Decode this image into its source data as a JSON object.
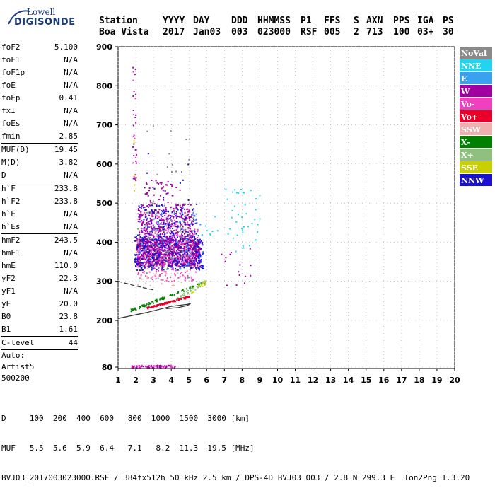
{
  "logo": {
    "line1": "Lowell",
    "line2": "DIGISONDE"
  },
  "header": {
    "labels": [
      "Station",
      "YYYY",
      "DAY",
      "DDD",
      "HHMMSS",
      "P1",
      "FFS",
      "S",
      "AXN",
      "PPS",
      "IGA",
      "PS"
    ],
    "values": [
      "Boa Vista",
      "2017",
      "Jan03",
      "003",
      "023000",
      "RSF",
      "005",
      "2",
      "713",
      "100",
      "03+",
      "30"
    ]
  },
  "params": [
    {
      "k": "foF2",
      "v": "5.100"
    },
    {
      "k": "foF1",
      "v": "N/A"
    },
    {
      "k": "foF1p",
      "v": "N/A"
    },
    {
      "k": "foE",
      "v": "N/A"
    },
    {
      "k": "foEp",
      "v": "0.41"
    },
    {
      "k": "fxI",
      "v": "N/A"
    },
    {
      "k": "foEs",
      "v": "N/A"
    },
    {
      "k": "fmin",
      "v": "2.85"
    },
    {
      "sep": true
    },
    {
      "k": "MUF(D)",
      "v": "19.45"
    },
    {
      "k": "M(D)",
      "v": "3.82"
    },
    {
      "k": "D",
      "v": "N/A"
    },
    {
      "sep": true
    },
    {
      "k": "h`F",
      "v": "233.8"
    },
    {
      "k": "h`F2",
      "v": "233.8"
    },
    {
      "k": "h`E",
      "v": "N/A"
    },
    {
      "k": "h`Es",
      "v": "N/A"
    },
    {
      "sep": true
    },
    {
      "k": "hmF2",
      "v": "243.5"
    },
    {
      "k": "hmF1",
      "v": "N/A"
    },
    {
      "k": "hmE",
      "v": "110.0"
    },
    {
      "k": "yF2",
      "v": "22.3"
    },
    {
      "k": "yF1",
      "v": "N/A"
    },
    {
      "k": "yE",
      "v": "20.0"
    },
    {
      "k": "B0",
      "v": "23.8"
    },
    {
      "k": "B1",
      "v": "1.61"
    },
    {
      "sep": true
    },
    {
      "k": "C-level",
      "v": "44"
    },
    {
      "sep": true
    },
    {
      "text": "Auto:"
    },
    {
      "text": "Artist5"
    },
    {
      "text": "500200"
    }
  ],
  "chart_data": {
    "type": "scatter",
    "x_ticks": [
      "1",
      "2",
      "3",
      "4",
      "5",
      "6",
      "7",
      "8",
      "9",
      "10",
      "11",
      "12",
      "13",
      "14",
      "15",
      "16",
      "17",
      "18",
      "19",
      "20"
    ],
    "xlim": [
      1,
      20
    ],
    "y_ticks": [
      {
        "value": 80,
        "label": "80"
      },
      {
        "value": 200,
        "label": "200"
      },
      {
        "value": 300,
        "label": "300"
      },
      {
        "value": 400,
        "label": "400"
      },
      {
        "value": 500,
        "label": "500"
      },
      {
        "value": 600,
        "label": "600"
      },
      {
        "value": 700,
        "label": "700"
      },
      {
        "value": 800,
        "label": "800"
      },
      {
        "value": 900,
        "label": "900"
      }
    ],
    "ylim": [
      80,
      900
    ],
    "legend": [
      {
        "label": "NoVal",
        "color": "#8a8a8a"
      },
      {
        "label": "NNE",
        "color": "#22d4f0"
      },
      {
        "label": "E",
        "color": "#3aa0f0"
      },
      {
        "label": "W",
        "color": "#a000a0"
      },
      {
        "label": "Vo-",
        "color": "#f040c0"
      },
      {
        "label": "Vo+",
        "color": "#e8002a"
      },
      {
        "label": "SSW",
        "color": "#f0b0b0"
      },
      {
        "label": "X-",
        "color": "#008000"
      },
      {
        "label": "X+",
        "color": "#90c080"
      },
      {
        "label": "SSE",
        "color": "#c8d000"
      },
      {
        "label": "NNW",
        "color": "#1a10d0"
      }
    ],
    "profile": {
      "trace": [
        [
          3.7,
          230
        ],
        [
          4.4,
          233
        ],
        [
          4.9,
          238
        ],
        [
          5.1,
          243.5
        ],
        [
          4.9,
          241
        ],
        [
          4.0,
          236
        ],
        [
          2.6,
          220
        ],
        [
          1.0,
          205
        ]
      ],
      "lower": [
        [
          1.0,
          300
        ],
        [
          2.0,
          288
        ],
        [
          3.0,
          278
        ]
      ]
    },
    "clusters": [
      {
        "color": "#a000a0",
        "count": 900,
        "x": [
          2.0,
          5.6
        ],
        "y": [
          340,
          410
        ]
      },
      {
        "color": "#1a10d0",
        "count": 420,
        "x": [
          1.9,
          5.8
        ],
        "y": [
          330,
          420
        ]
      },
      {
        "color": "#f040c0",
        "count": 260,
        "x": [
          2.0,
          5.5
        ],
        "y": [
          300,
          480
        ]
      },
      {
        "color": "#a000a0",
        "count": 300,
        "x": [
          2.1,
          5.2
        ],
        "y": [
          410,
          500
        ]
      },
      {
        "color": "#1a10d0",
        "count": 120,
        "x": [
          2.1,
          5.4
        ],
        "y": [
          410,
          500
        ]
      },
      {
        "color": "#3aa0f0",
        "count": 80,
        "x": [
          2.2,
          5.8
        ],
        "y": [
          330,
          480
        ]
      },
      {
        "color": "#8a8a8a",
        "count": 60,
        "x": [
          1.9,
          5.2
        ],
        "y": [
          300,
          500
        ]
      },
      {
        "color": "#f0b0b0",
        "count": 60,
        "x": [
          2.0,
          4.8
        ],
        "y": [
          290,
          450
        ]
      },
      {
        "color": "#a000a0",
        "count": 40,
        "x": [
          2.5,
          4.5
        ],
        "y": [
          500,
          560
        ]
      },
      {
        "color": "#22d4f0",
        "count": 40,
        "x": [
          7.0,
          9.0
        ],
        "y": [
          360,
          540
        ]
      },
      {
        "color": "#a000a0",
        "count": 15,
        "x": [
          6.8,
          8.6
        ],
        "y": [
          290,
          400
        ]
      },
      {
        "color": "#a000a0",
        "count": 60,
        "x": [
          1.7,
          4.2
        ],
        "y": [
          80,
          86
        ]
      },
      {
        "color": "#f040c0",
        "count": 20,
        "x": [
          1.7,
          4.0
        ],
        "y": [
          80,
          86
        ]
      },
      {
        "color": "#a000a0",
        "count": 25,
        "x": [
          1.8,
          2.0
        ],
        "y": [
          560,
          860
        ]
      },
      {
        "color": "#f040c0",
        "count": 10,
        "x": [
          1.8,
          2.0
        ],
        "y": [
          560,
          860
        ]
      },
      {
        "color": "#c8d000",
        "count": 6,
        "x": [
          1.8,
          2.0
        ],
        "y": [
          450,
          700
        ]
      },
      {
        "color": "#8a8a8a",
        "count": 15,
        "x": [
          2.2,
          5.2
        ],
        "y": [
          500,
          700
        ]
      },
      {
        "color": "#1a10d0",
        "count": 10,
        "x": [
          2.4,
          5.0
        ],
        "y": [
          500,
          650
        ]
      },
      {
        "color": "#22d4f0",
        "count": 8,
        "x": [
          5.6,
          6.6
        ],
        "y": [
          420,
          470
        ]
      }
    ],
    "trace_points": [
      {
        "color": "#008000",
        "count": 90,
        "x": [
          1.7,
          5.9
        ],
        "y_from": [
          227,
          300
        ],
        "jitter": 6
      },
      {
        "color": "#e8002a",
        "count": 110,
        "x": [
          2.6,
          5.0
        ],
        "y_from": [
          233,
          262
        ],
        "jitter": 4
      },
      {
        "color": "#90c080",
        "count": 35,
        "x": [
          4.2,
          5.9
        ],
        "y_from": [
          255,
          300
        ],
        "jitter": 10
      },
      {
        "color": "#c8d000",
        "count": 15,
        "x": [
          5.0,
          5.9
        ],
        "y_from": [
          270,
          300
        ],
        "jitter": 12
      }
    ]
  },
  "footer": {
    "line1": "D     100  200  400  600   800  1000  1500  3000 [km]",
    "line2": "MUF   5.5  5.6  5.9  6.4   7.1   8.2  11.3  19.5 [MHz]",
    "line3": "BVJ03_2017003023000.RSF / 384fx512h 50 kHz 2.5 km / DPS-4D BVJ03 003 / 2.8 N 299.3 E  Ion2Png 1.3.20"
  }
}
